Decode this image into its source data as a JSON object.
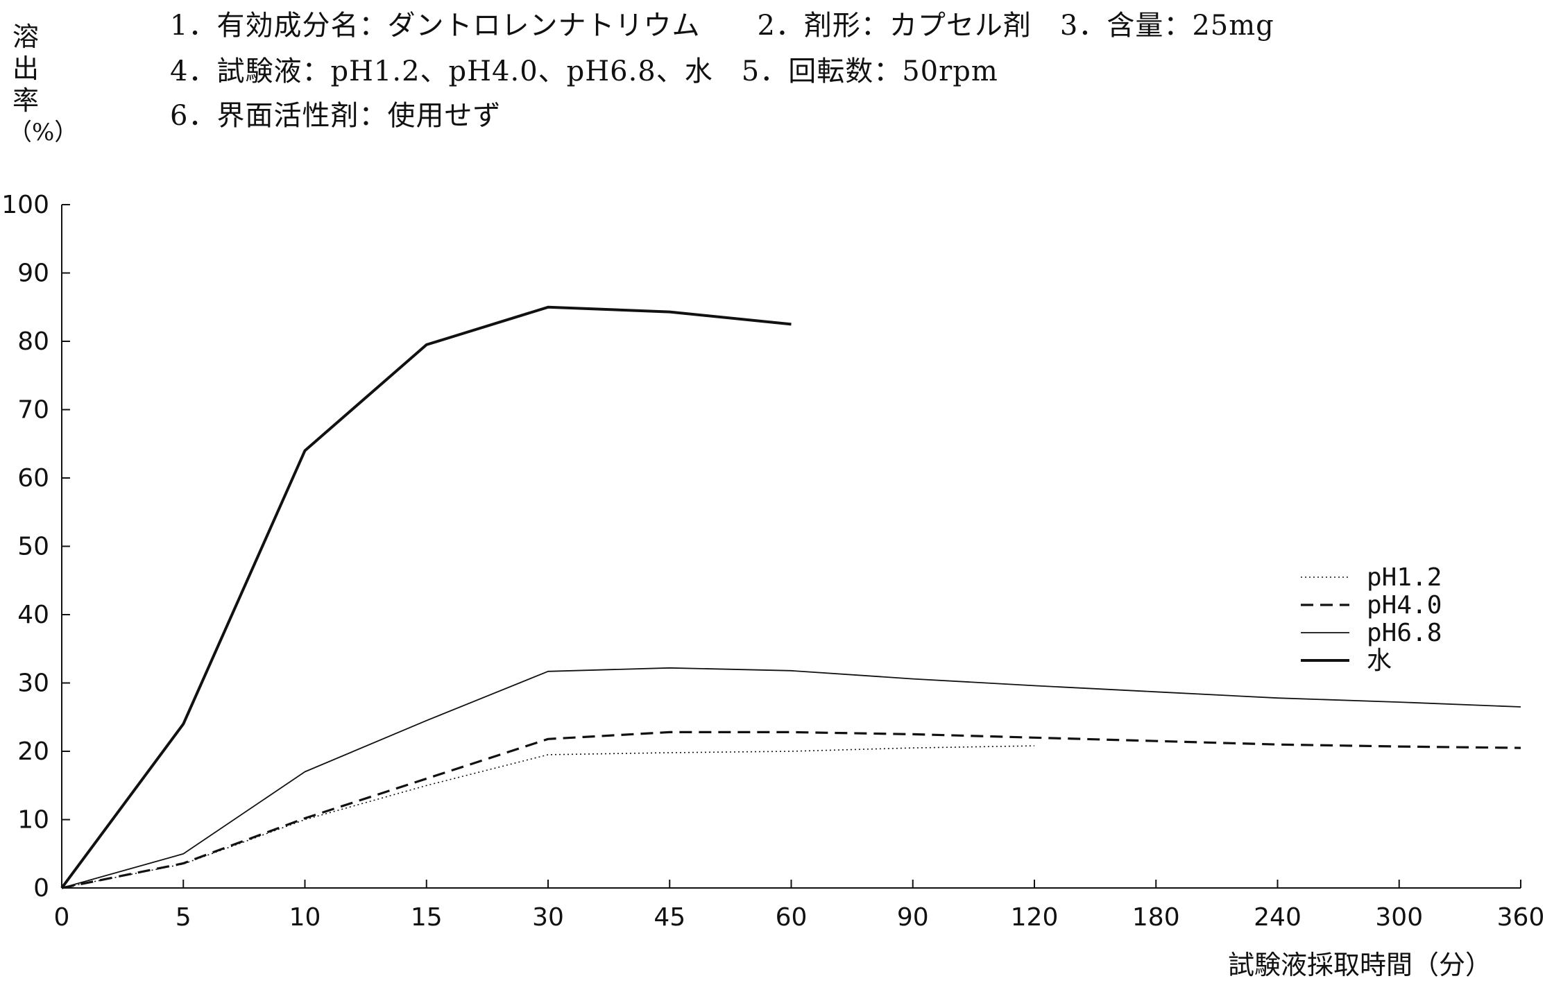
{
  "header": {
    "line1": "1．有効成分名：ダントロレンナトリウム　　2．剤形：カプセル剤　3．含量：25mg",
    "line2": "4．試験液：pH1.2、pH4.0、pH6.8、水　5．回転数：50rpm",
    "line3": "6．界面活性剤：使用せず"
  },
  "chart_data": {
    "type": "line",
    "ylabel_chars": [
      "溶",
      "出",
      "率",
      "（%）"
    ],
    "xlabel": "試験液採取時間（分）",
    "categories": [
      "0",
      "5",
      "10",
      "15",
      "30",
      "45",
      "60",
      "90",
      "120",
      "180",
      "240",
      "300",
      "360"
    ],
    "yticks": [
      "0",
      "10",
      "20",
      "30",
      "40",
      "50",
      "60",
      "70",
      "80",
      "90",
      "100"
    ],
    "ylim": [
      0,
      100
    ],
    "grid": false,
    "legend_position": "right",
    "series": [
      {
        "name": "pH1.2",
        "style": "dotted",
        "points": [
          [
            0,
            0
          ],
          [
            5,
            3.5
          ],
          [
            10,
            10
          ],
          [
            15,
            15
          ],
          [
            30,
            19.5
          ],
          [
            45,
            19.8
          ],
          [
            60,
            20
          ],
          [
            90,
            20.5
          ],
          [
            120,
            20.8
          ]
        ]
      },
      {
        "name": "pH4.0",
        "style": "dashed",
        "points": [
          [
            0,
            0
          ],
          [
            5,
            3.6
          ],
          [
            10,
            10.2
          ],
          [
            15,
            16
          ],
          [
            30,
            21.8
          ],
          [
            45,
            22.8
          ],
          [
            60,
            22.8
          ],
          [
            90,
            22.5
          ],
          [
            120,
            22
          ],
          [
            180,
            21.5
          ],
          [
            240,
            21
          ],
          [
            300,
            20.7
          ],
          [
            360,
            20.5
          ]
        ]
      },
      {
        "name": "pH6.8",
        "style": "thin",
        "points": [
          [
            0,
            0
          ],
          [
            5,
            5
          ],
          [
            10,
            17
          ],
          [
            15,
            24.5
          ],
          [
            30,
            31.7
          ],
          [
            45,
            32.2
          ],
          [
            60,
            31.8
          ],
          [
            90,
            30.6
          ],
          [
            120,
            29.6
          ],
          [
            180,
            28.7
          ],
          [
            240,
            27.8
          ],
          [
            300,
            27.2
          ],
          [
            360,
            26.5
          ]
        ]
      },
      {
        "name": "水",
        "style": "thick",
        "points": [
          [
            0,
            0
          ],
          [
            5,
            24
          ],
          [
            10,
            64
          ],
          [
            15,
            79.5
          ],
          [
            30,
            85
          ],
          [
            45,
            84.3
          ],
          [
            60,
            82.5
          ]
        ]
      }
    ]
  }
}
